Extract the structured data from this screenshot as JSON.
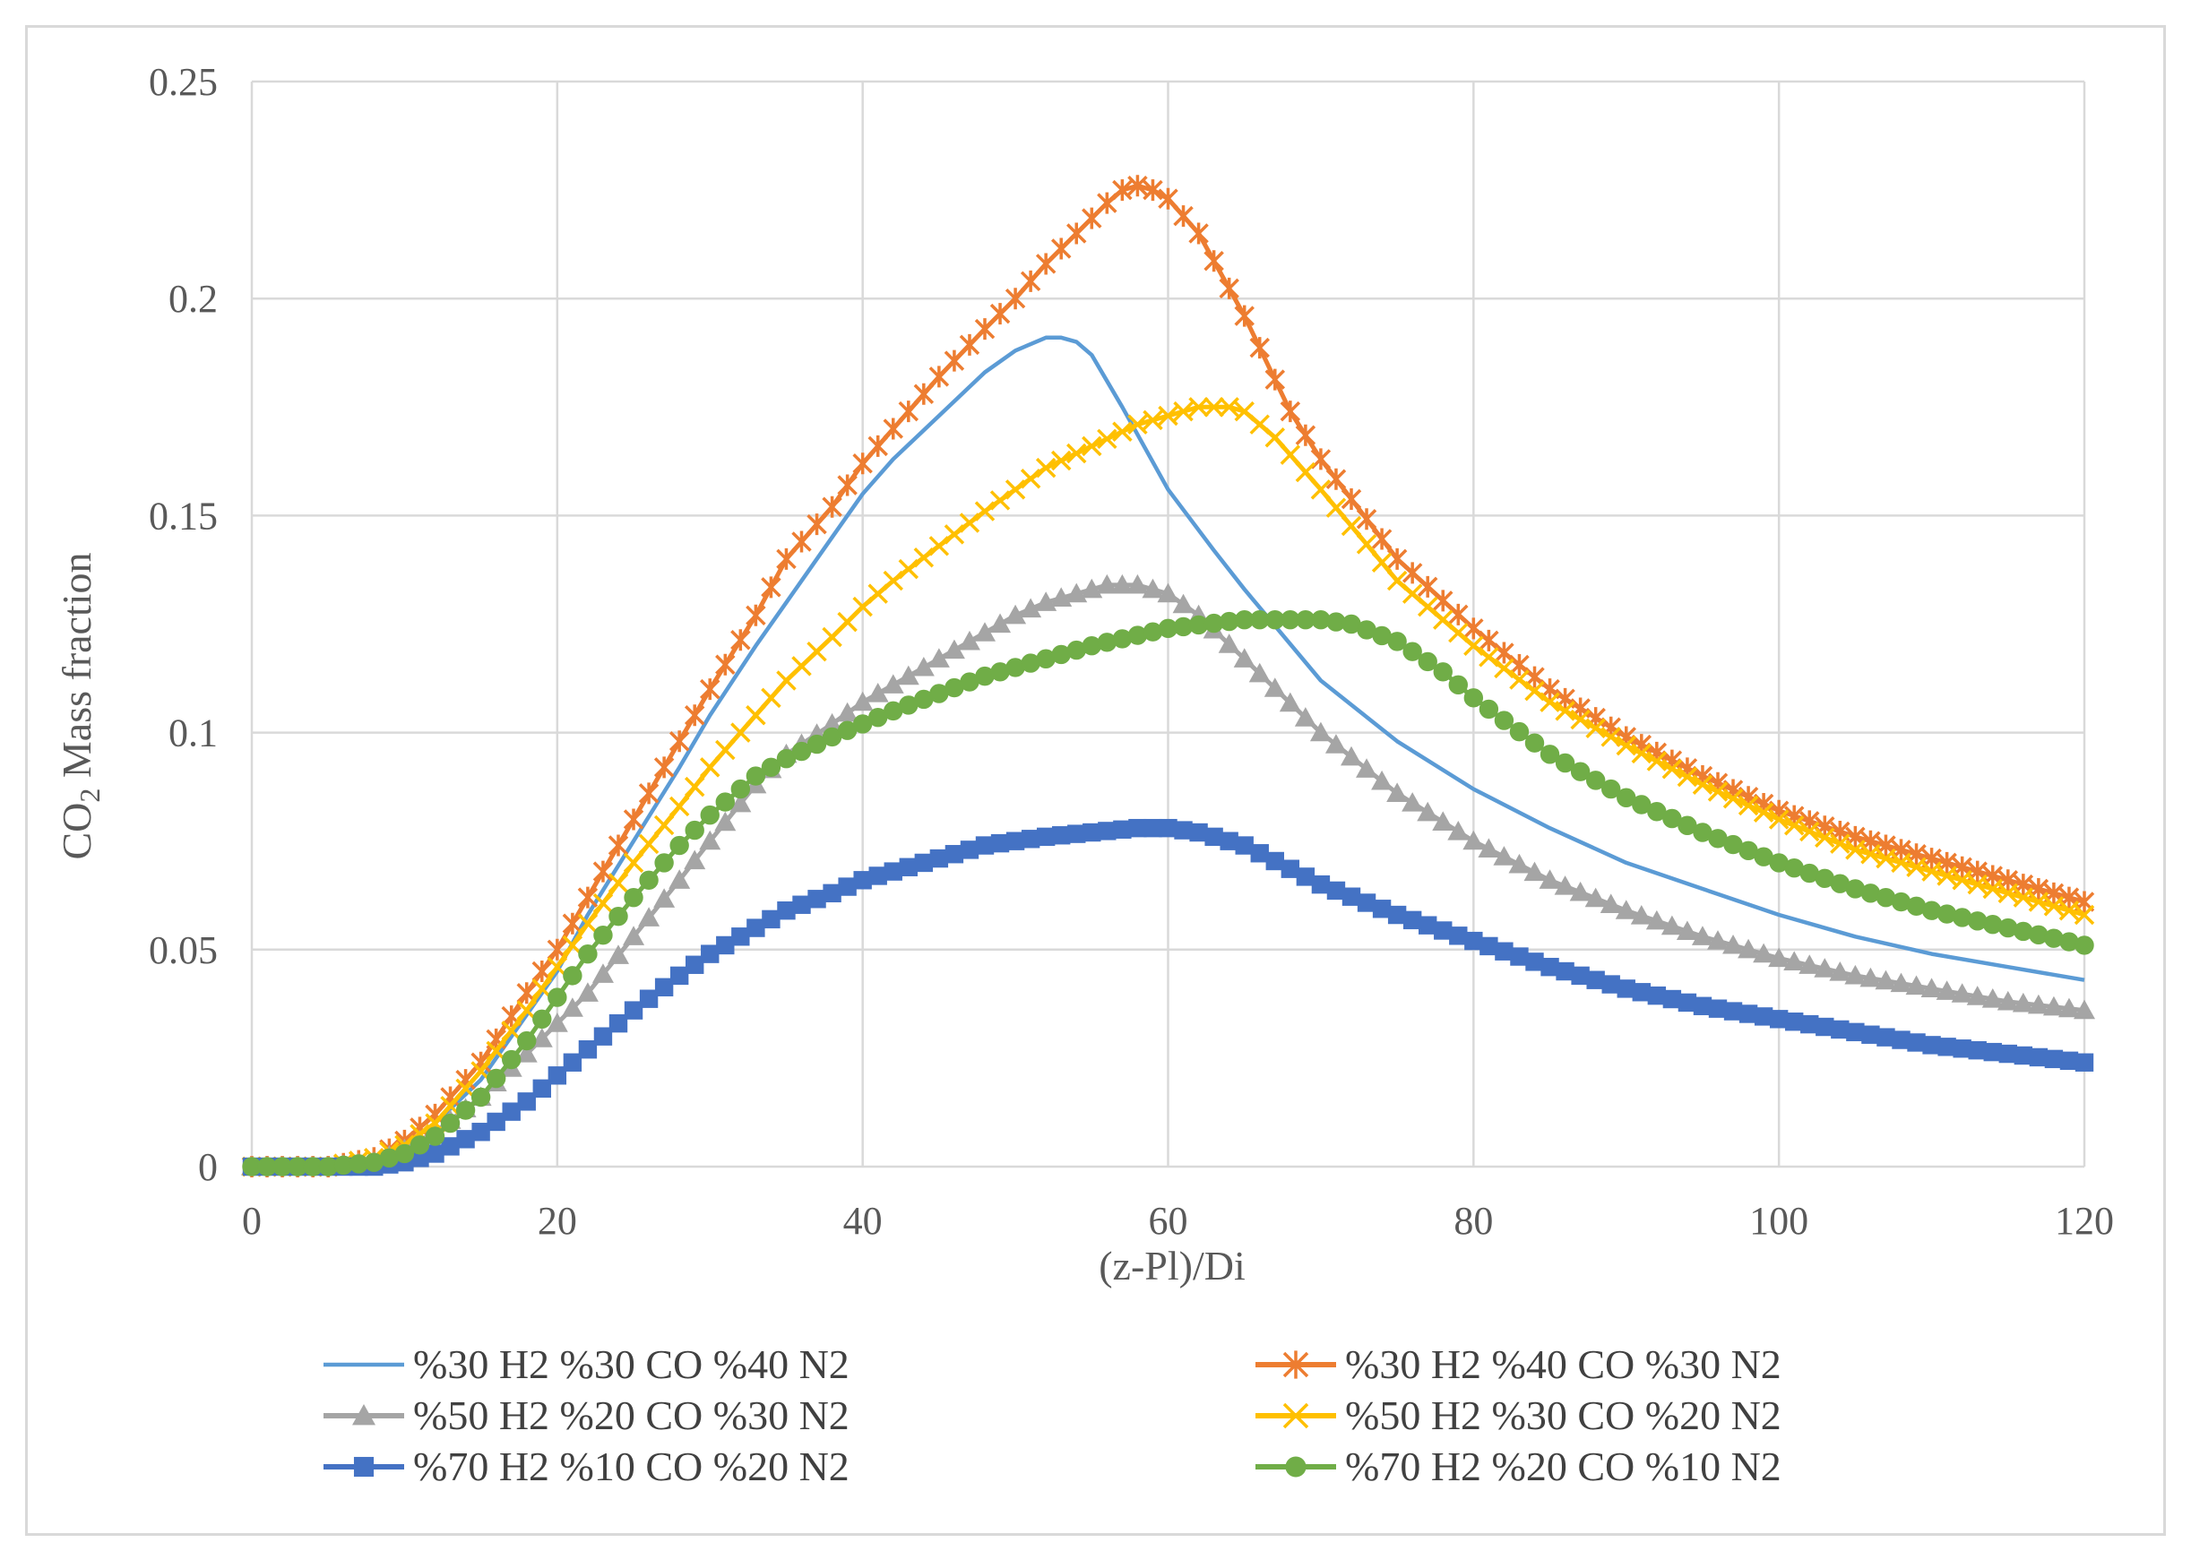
{
  "chart_data": {
    "type": "line",
    "title": "",
    "xlabel": "(z-Pl)/Di",
    "ylabel_main": "CO",
    "ylabel_sub": "2",
    "ylabel_rest": " Mass fraction",
    "xlim": [
      0,
      120
    ],
    "ylim": [
      0,
      0.25
    ],
    "xticks": [
      0,
      20,
      40,
      60,
      80,
      100,
      120
    ],
    "xtick_labels": [
      "0",
      "20",
      "40",
      "60",
      "80",
      "100",
      "120"
    ],
    "yticks": [
      0,
      0.05,
      0.1,
      0.15,
      0.2,
      0.25
    ],
    "ytick_labels": [
      "0",
      "0.05",
      "0.1",
      "0.15",
      "0.2",
      "0.25"
    ],
    "grid": true,
    "legend_position": "bottom",
    "series": [
      {
        "name": "%30 H2 %30 CO  %40 N2",
        "color": "#5b9bd5",
        "marker": "none",
        "x": [
          0,
          5,
          8,
          10,
          12,
          15,
          18,
          20,
          22,
          25,
          28,
          30,
          33,
          35,
          38,
          40,
          42,
          45,
          48,
          50,
          52,
          53,
          54,
          55,
          57,
          60,
          63,
          65,
          70,
          75,
          80,
          85,
          90,
          95,
          100,
          105,
          110,
          115,
          120
        ],
        "y": [
          0,
          0,
          0.002,
          0.005,
          0.01,
          0.02,
          0.035,
          0.045,
          0.058,
          0.075,
          0.092,
          0.104,
          0.12,
          0.13,
          0.145,
          0.155,
          0.163,
          0.173,
          0.183,
          0.188,
          0.191,
          0.191,
          0.19,
          0.187,
          0.175,
          0.156,
          0.142,
          0.133,
          0.112,
          0.098,
          0.087,
          0.078,
          0.07,
          0.064,
          0.058,
          0.053,
          0.049,
          0.046,
          0.043
        ]
      },
      {
        "name": "%30 H2 %40 CO  %30 N2",
        "color": "#ed7d31",
        "marker": "star",
        "x": [
          0,
          5,
          8,
          10,
          12,
          15,
          18,
          20,
          22,
          25,
          28,
          30,
          33,
          35,
          38,
          40,
          42,
          45,
          48,
          50,
          52,
          54,
          56,
          57,
          58,
          59,
          60,
          62,
          65,
          68,
          70,
          75,
          80,
          85,
          90,
          95,
          100,
          105,
          110,
          115,
          120
        ],
        "y": [
          0,
          0,
          0.002,
          0.006,
          0.012,
          0.024,
          0.04,
          0.05,
          0.062,
          0.08,
          0.098,
          0.11,
          0.127,
          0.14,
          0.152,
          0.162,
          0.17,
          0.182,
          0.193,
          0.2,
          0.208,
          0.215,
          0.222,
          0.225,
          0.226,
          0.225,
          0.223,
          0.215,
          0.196,
          0.174,
          0.163,
          0.14,
          0.124,
          0.11,
          0.099,
          0.09,
          0.082,
          0.076,
          0.071,
          0.066,
          0.061
        ]
      },
      {
        "name": "%50 H2 %20 CO  %30 N2",
        "color": "#a5a5a5",
        "marker": "triangle",
        "x": [
          0,
          5,
          8,
          10,
          12,
          15,
          18,
          20,
          22,
          25,
          28,
          30,
          33,
          35,
          38,
          40,
          42,
          45,
          48,
          50,
          52,
          54,
          56,
          57,
          58,
          60,
          62,
          65,
          70,
          75,
          80,
          85,
          90,
          95,
          100,
          105,
          110,
          115,
          120
        ],
        "y": [
          0,
          0,
          0.001,
          0.004,
          0.008,
          0.016,
          0.026,
          0.033,
          0.04,
          0.053,
          0.066,
          0.075,
          0.088,
          0.095,
          0.102,
          0.107,
          0.111,
          0.117,
          0.123,
          0.127,
          0.13,
          0.132,
          0.134,
          0.134,
          0.134,
          0.132,
          0.127,
          0.117,
          0.1,
          0.086,
          0.075,
          0.066,
          0.059,
          0.053,
          0.048,
          0.044,
          0.041,
          0.038,
          0.036
        ]
      },
      {
        "name": "%50 H2 %30 CO  %20 N2",
        "color": "#ffc000",
        "marker": "x",
        "x": [
          0,
          5,
          8,
          10,
          12,
          15,
          18,
          20,
          22,
          25,
          28,
          30,
          33,
          35,
          38,
          40,
          42,
          45,
          48,
          50,
          52,
          55,
          58,
          60,
          62,
          63,
          64,
          65,
          67,
          70,
          75,
          80,
          85,
          90,
          95,
          100,
          105,
          110,
          115,
          120
        ],
        "y": [
          0,
          0,
          0.002,
          0.005,
          0.01,
          0.022,
          0.036,
          0.046,
          0.056,
          0.07,
          0.083,
          0.092,
          0.104,
          0.112,
          0.122,
          0.129,
          0.135,
          0.143,
          0.151,
          0.156,
          0.161,
          0.166,
          0.171,
          0.173,
          0.175,
          0.175,
          0.175,
          0.174,
          0.168,
          0.156,
          0.135,
          0.12,
          0.107,
          0.097,
          0.088,
          0.08,
          0.073,
          0.068,
          0.063,
          0.058
        ]
      },
      {
        "name": "%70 H2 %10 CO  %20 N2",
        "color": "#4472c4",
        "marker": "square",
        "x": [
          0,
          5,
          8,
          10,
          12,
          15,
          18,
          20,
          22,
          25,
          28,
          30,
          33,
          35,
          38,
          40,
          42,
          45,
          48,
          50,
          52,
          55,
          58,
          60,
          62,
          65,
          70,
          75,
          80,
          85,
          90,
          95,
          100,
          105,
          110,
          115,
          120
        ],
        "y": [
          0,
          0,
          0,
          0.001,
          0.003,
          0.008,
          0.015,
          0.021,
          0.027,
          0.036,
          0.044,
          0.049,
          0.055,
          0.059,
          0.063,
          0.066,
          0.068,
          0.071,
          0.074,
          0.075,
          0.076,
          0.077,
          0.078,
          0.078,
          0.077,
          0.074,
          0.065,
          0.058,
          0.052,
          0.046,
          0.041,
          0.037,
          0.034,
          0.031,
          0.028,
          0.026,
          0.024
        ]
      },
      {
        "name": "%70 H2 %20 CO  %10 N2",
        "color": "#70ad47",
        "marker": "circle",
        "x": [
          0,
          5,
          8,
          10,
          12,
          15,
          18,
          20,
          22,
          25,
          28,
          30,
          33,
          35,
          38,
          40,
          42,
          45,
          48,
          50,
          55,
          60,
          65,
          68,
          70,
          72,
          75,
          78,
          80,
          85,
          90,
          95,
          100,
          105,
          110,
          115,
          120
        ],
        "y": [
          0,
          0,
          0.001,
          0.003,
          0.007,
          0.016,
          0.029,
          0.039,
          0.049,
          0.062,
          0.074,
          0.081,
          0.09,
          0.094,
          0.099,
          0.102,
          0.105,
          0.109,
          0.113,
          0.115,
          0.12,
          0.124,
          0.126,
          0.126,
          0.126,
          0.125,
          0.121,
          0.114,
          0.108,
          0.095,
          0.085,
          0.077,
          0.07,
          0.064,
          0.059,
          0.055,
          0.051
        ]
      }
    ]
  }
}
